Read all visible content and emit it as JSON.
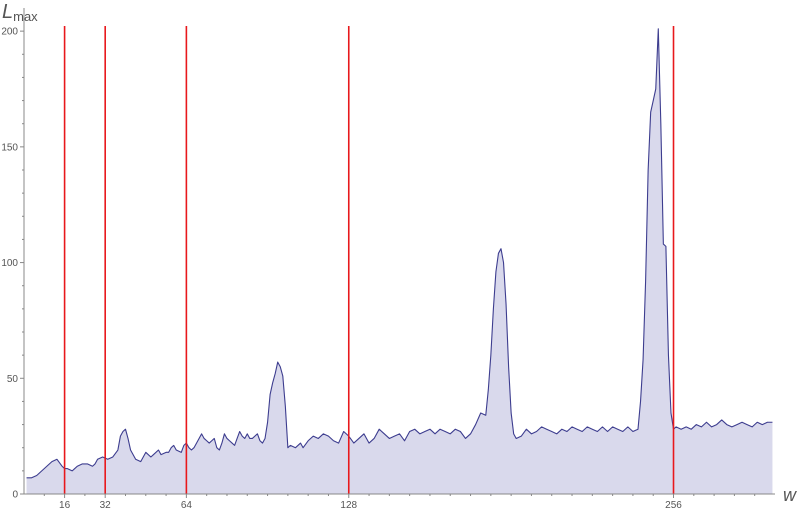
{
  "chart_data": {
    "type": "area",
    "ylabel_main": "L",
    "ylabel_sub": "max",
    "xlabel": "w",
    "xlim": [
      0,
      296
    ],
    "ylim": [
      0,
      210
    ],
    "x_ticks": [
      16,
      32,
      64,
      128,
      256
    ],
    "y_ticks": [
      0,
      50,
      100,
      150,
      200
    ],
    "reference_lines_x": [
      16,
      32,
      64,
      128,
      256
    ],
    "grid": false,
    "colors": {
      "line": "#3d3d8f",
      "fill": "#d9d9ec",
      "reference": "#e8181c",
      "axis": "#888888"
    },
    "series": [
      {
        "points": [
          [
            1,
            7
          ],
          [
            3,
            7
          ],
          [
            5,
            8
          ],
          [
            7,
            10
          ],
          [
            9,
            12
          ],
          [
            11,
            14
          ],
          [
            13,
            15
          ],
          [
            15,
            12
          ],
          [
            16,
            11
          ],
          [
            17,
            11
          ],
          [
            19,
            10
          ],
          [
            20,
            11
          ],
          [
            21,
            12
          ],
          [
            23,
            13
          ],
          [
            25,
            13
          ],
          [
            27,
            12
          ],
          [
            28,
            13
          ],
          [
            29,
            15
          ],
          [
            31,
            16
          ],
          [
            33,
            15
          ],
          [
            35,
            16
          ],
          [
            37,
            19
          ],
          [
            38,
            25
          ],
          [
            39,
            27
          ],
          [
            40,
            28
          ],
          [
            41,
            24
          ],
          [
            42,
            19
          ],
          [
            43,
            17
          ],
          [
            44,
            15
          ],
          [
            46,
            14
          ],
          [
            47,
            16
          ],
          [
            48,
            18
          ],
          [
            50,
            16
          ],
          [
            51,
            17
          ],
          [
            53,
            19
          ],
          [
            54,
            17
          ],
          [
            56,
            18
          ],
          [
            57,
            18
          ],
          [
            58,
            20
          ],
          [
            59,
            21
          ],
          [
            60,
            19
          ],
          [
            62,
            18
          ],
          [
            63,
            21
          ],
          [
            64,
            22
          ],
          [
            65,
            20
          ],
          [
            66,
            19
          ],
          [
            67,
            20
          ],
          [
            68,
            22
          ],
          [
            69,
            24
          ],
          [
            70,
            26
          ],
          [
            71,
            24
          ],
          [
            72,
            23
          ],
          [
            73,
            22
          ],
          [
            74,
            23
          ],
          [
            75,
            24
          ],
          [
            76,
            20
          ],
          [
            77,
            19
          ],
          [
            78,
            22
          ],
          [
            79,
            26
          ],
          [
            80,
            24
          ],
          [
            81,
            23
          ],
          [
            82,
            22
          ],
          [
            83,
            21
          ],
          [
            84,
            24
          ],
          [
            85,
            27
          ],
          [
            86,
            25
          ],
          [
            87,
            24
          ],
          [
            88,
            26
          ],
          [
            89,
            24
          ],
          [
            90,
            24
          ],
          [
            91,
            25
          ],
          [
            92,
            26
          ],
          [
            93,
            23
          ],
          [
            94,
            22
          ],
          [
            95,
            24
          ],
          [
            96,
            31
          ],
          [
            97,
            43
          ],
          [
            98,
            48
          ],
          [
            99,
            52
          ],
          [
            100,
            57
          ],
          [
            101,
            55
          ],
          [
            102,
            51
          ],
          [
            103,
            38
          ],
          [
            104,
            20
          ],
          [
            105,
            21
          ],
          [
            107,
            20
          ],
          [
            109,
            22
          ],
          [
            110,
            20
          ],
          [
            112,
            23
          ],
          [
            114,
            25
          ],
          [
            116,
            24
          ],
          [
            118,
            26
          ],
          [
            120,
            25
          ],
          [
            122,
            23
          ],
          [
            124,
            22
          ],
          [
            126,
            27
          ],
          [
            128,
            25
          ],
          [
            130,
            22
          ],
          [
            132,
            24
          ],
          [
            134,
            26
          ],
          [
            136,
            22
          ],
          [
            138,
            24
          ],
          [
            140,
            28
          ],
          [
            142,
            26
          ],
          [
            144,
            24
          ],
          [
            146,
            25
          ],
          [
            148,
            26
          ],
          [
            150,
            23
          ],
          [
            152,
            27
          ],
          [
            154,
            28
          ],
          [
            156,
            26
          ],
          [
            158,
            27
          ],
          [
            160,
            28
          ],
          [
            162,
            26
          ],
          [
            164,
            28
          ],
          [
            166,
            27
          ],
          [
            168,
            26
          ],
          [
            170,
            28
          ],
          [
            172,
            27
          ],
          [
            174,
            24
          ],
          [
            176,
            26
          ],
          [
            178,
            30
          ],
          [
            180,
            35
          ],
          [
            182,
            34
          ],
          [
            183,
            45
          ],
          [
            184,
            60
          ],
          [
            185,
            80
          ],
          [
            186,
            96
          ],
          [
            187,
            104
          ],
          [
            188,
            106
          ],
          [
            189,
            100
          ],
          [
            190,
            82
          ],
          [
            191,
            55
          ],
          [
            192,
            35
          ],
          [
            193,
            26
          ],
          [
            194,
            24
          ],
          [
            196,
            25
          ],
          [
            198,
            28
          ],
          [
            200,
            26
          ],
          [
            202,
            27
          ],
          [
            204,
            29
          ],
          [
            206,
            28
          ],
          [
            208,
            27
          ],
          [
            210,
            26
          ],
          [
            212,
            28
          ],
          [
            214,
            27
          ],
          [
            216,
            29
          ],
          [
            218,
            28
          ],
          [
            220,
            27
          ],
          [
            222,
            29
          ],
          [
            224,
            28
          ],
          [
            226,
            27
          ],
          [
            228,
            29
          ],
          [
            230,
            27
          ],
          [
            232,
            29
          ],
          [
            234,
            28
          ],
          [
            236,
            27
          ],
          [
            238,
            29
          ],
          [
            240,
            27
          ],
          [
            242,
            28
          ],
          [
            243,
            40
          ],
          [
            244,
            58
          ],
          [
            245,
            92
          ],
          [
            246,
            140
          ],
          [
            247,
            165
          ],
          [
            248,
            170
          ],
          [
            249,
            175
          ],
          [
            250,
            201
          ],
          [
            251,
            160
          ],
          [
            252,
            108
          ],
          [
            253,
            107
          ],
          [
            254,
            60
          ],
          [
            255,
            35
          ],
          [
            256,
            28
          ],
          [
            257,
            29
          ],
          [
            259,
            28
          ],
          [
            261,
            29
          ],
          [
            263,
            28
          ],
          [
            265,
            30
          ],
          [
            267,
            29
          ],
          [
            269,
            31
          ],
          [
            271,
            29
          ],
          [
            273,
            30
          ],
          [
            275,
            32
          ],
          [
            277,
            30
          ],
          [
            279,
            29
          ],
          [
            281,
            30
          ],
          [
            283,
            31
          ],
          [
            285,
            30
          ],
          [
            287,
            29
          ],
          [
            289,
            31
          ],
          [
            291,
            30
          ],
          [
            293,
            31
          ],
          [
            295,
            31
          ]
        ]
      }
    ]
  }
}
